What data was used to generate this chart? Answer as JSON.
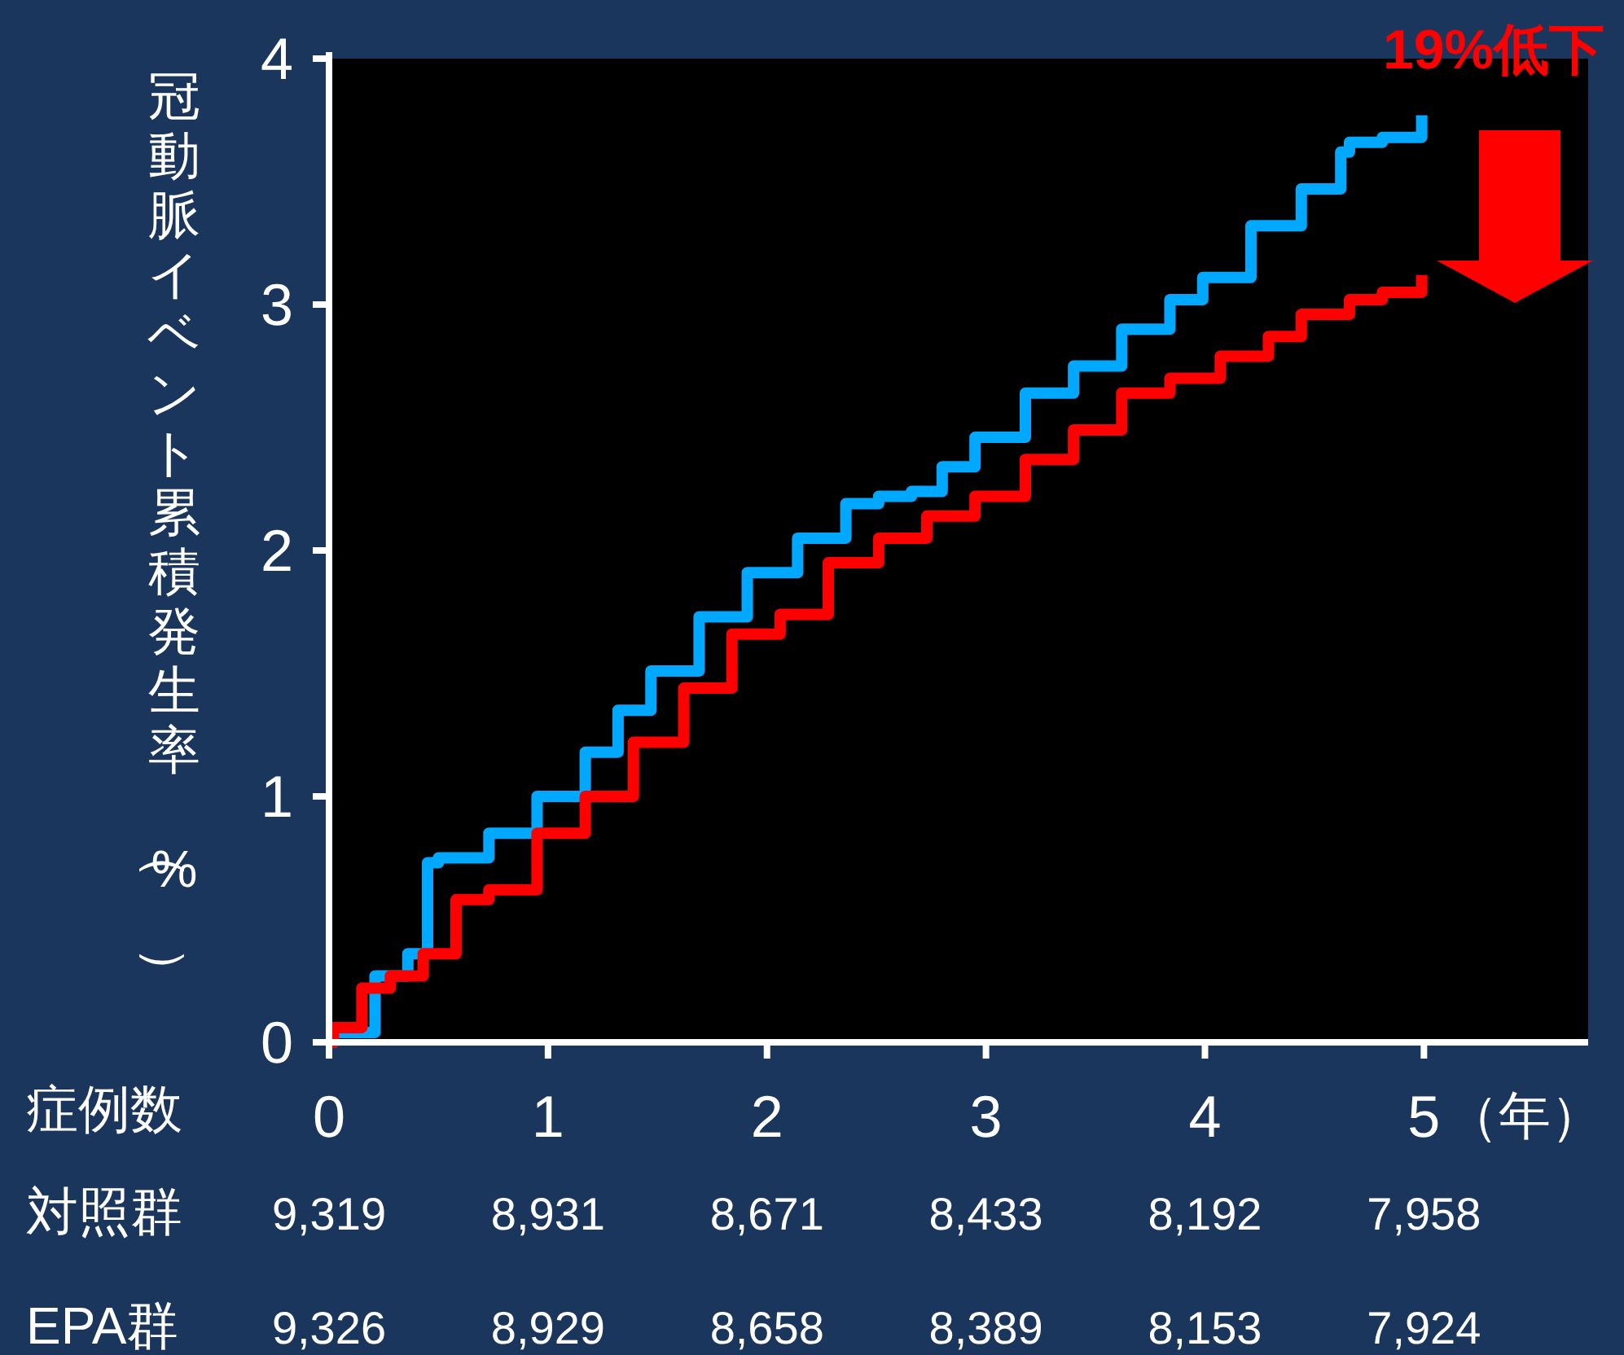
{
  "chart_data": {
    "type": "step",
    "ylabel": "冠動脈イベント累積発生率（%）",
    "xlabel": "（年）",
    "xlim": [
      0,
      5.75
    ],
    "ylim": [
      0,
      4
    ],
    "xticks": [
      0,
      1,
      2,
      3,
      4,
      5
    ],
    "yticks": [
      0,
      1,
      2,
      3,
      4
    ],
    "grid": false,
    "annotations": [
      "19%低下",
      "症例数",
      "対照群",
      "9,319",
      "8,931",
      "8,671",
      "8,433",
      "8,192",
      "7,958",
      "EPA群",
      "9,326",
      "8,929",
      "8,658",
      "8,389",
      "8,153",
      "7,924"
    ],
    "series": [
      {
        "color": "#00a8ff",
        "x": [
          0,
          0.02,
          0.21,
          0.36,
          0.45,
          0.5,
          0.73,
          0.95,
          1.17,
          1.32,
          1.47,
          1.69,
          1.91,
          2.14,
          2.36,
          2.51,
          2.66,
          2.8,
          2.95,
          3.18,
          3.4,
          3.62,
          3.84,
          3.99,
          4.21,
          4.44,
          4.62,
          4.66,
          4.81,
          4.99
        ],
        "values": [
          0,
          0.04,
          0.27,
          0.36,
          0.73,
          0.75,
          0.85,
          1.0,
          1.18,
          1.35,
          1.51,
          1.73,
          1.91,
          2.05,
          2.19,
          2.22,
          2.24,
          2.34,
          2.46,
          2.64,
          2.75,
          2.9,
          3.02,
          3.11,
          3.32,
          3.47,
          3.62,
          3.66,
          3.68,
          3.77
        ]
      },
      {
        "color": "#ff0000",
        "x": [
          0,
          0.02,
          0.15,
          0.28,
          0.43,
          0.58,
          0.73,
          0.95,
          1.17,
          1.39,
          1.62,
          1.84,
          2.06,
          2.28,
          2.51,
          2.73,
          2.95,
          3.18,
          3.4,
          3.62,
          3.84,
          4.07,
          4.29,
          4.44,
          4.66,
          4.81,
          4.99
        ],
        "values": [
          0,
          0.06,
          0.22,
          0.27,
          0.36,
          0.58,
          0.62,
          0.85,
          1.0,
          1.22,
          1.44,
          1.66,
          1.74,
          1.95,
          2.05,
          2.14,
          2.22,
          2.37,
          2.49,
          2.64,
          2.7,
          2.79,
          2.87,
          2.96,
          3.02,
          3.05,
          3.12
        ]
      }
    ]
  }
}
